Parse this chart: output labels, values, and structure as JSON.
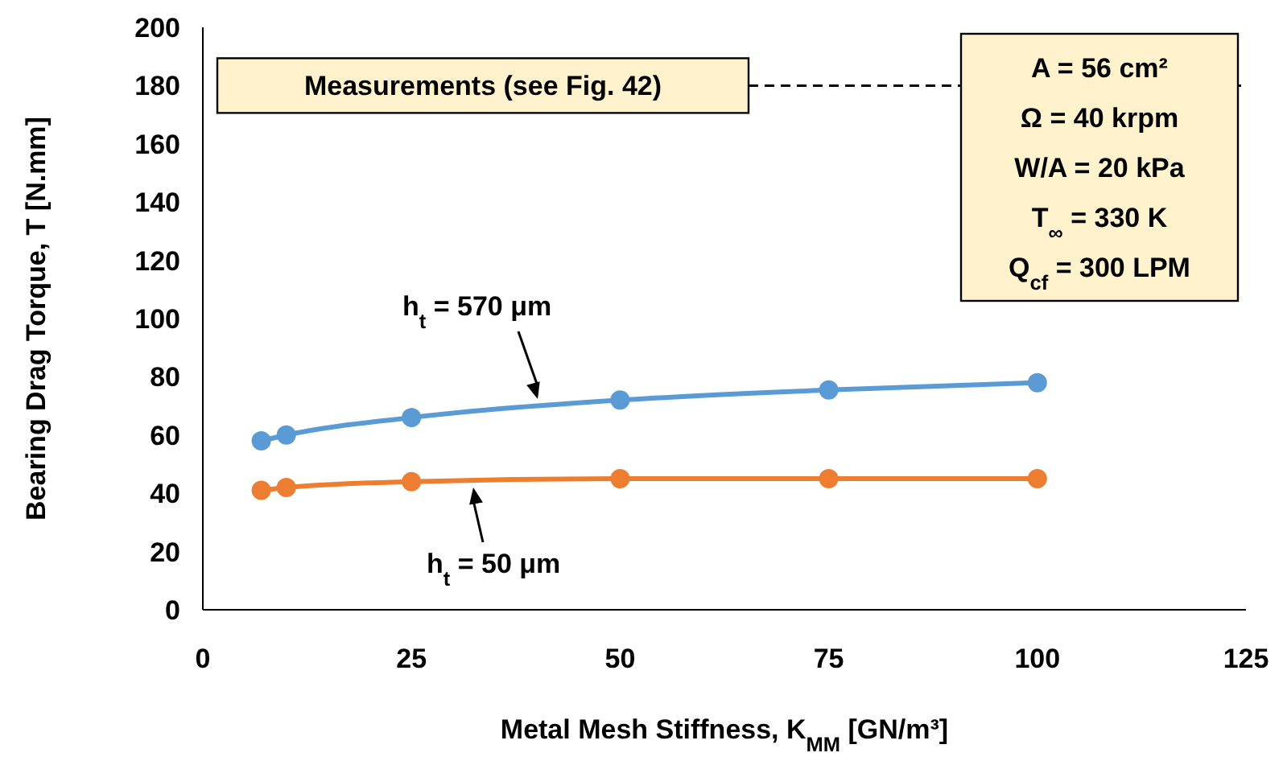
{
  "chart_data": {
    "type": "line",
    "xlabel": "Metal Mesh Stiffness, K$_{MM}$ [GN/m³]",
    "ylabel": "Bearing Drag Torque, T [N.mm]",
    "xlim": [
      0,
      125
    ],
    "xticks": [
      0,
      25,
      50,
      75,
      100,
      125
    ],
    "ylim": [
      0,
      200
    ],
    "yticks": [
      0,
      20,
      40,
      60,
      80,
      100,
      120,
      140,
      160,
      180,
      200
    ],
    "grid": false,
    "marker": "circle",
    "line_style": "solid",
    "series": [
      {
        "name": "h$_{t}$ = 570 μm",
        "color": "#5b9bd5",
        "x": [
          7,
          10,
          25,
          50,
          75,
          100
        ],
        "values": [
          58,
          60,
          66,
          72,
          75.5,
          78
        ]
      },
      {
        "name": "h$_{t}$ = 50 μm",
        "color": "#ed7d31",
        "x": [
          7,
          10,
          25,
          50,
          75,
          100
        ],
        "values": [
          41,
          42,
          44,
          45,
          45,
          45
        ]
      }
    ],
    "ref_lines": [
      {
        "axis": "y",
        "value": 180,
        "line_style": "dashed",
        "color": "#000000"
      }
    ],
    "annotations": [
      "Measurements (see Fig. 42)",
      "A = 56 cm²",
      "Ω = 40 krpm",
      "W/A = 20 kPa",
      "T$_{∞}$ = 330 K",
      "Q$_{cf}$ = 300 LPM"
    ]
  }
}
